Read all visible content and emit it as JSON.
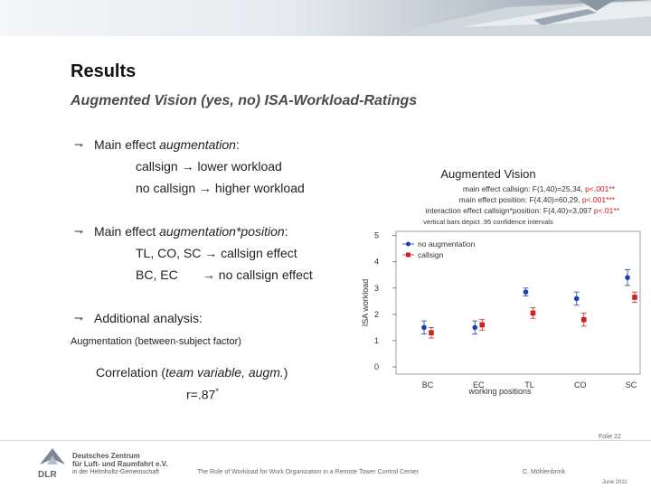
{
  "slide": {
    "title": "Results",
    "subtitle": "Augmented Vision (yes, no) ISA-Workload-Ratings"
  },
  "bullets": {
    "b1_prefix": "Main effect ",
    "b1_emph": "augmentation",
    "b1_suffix": ":",
    "b1_line2": "callsign → lower workload",
    "b1_line3": "no callsign  → higher workload",
    "b2_prefix": "Main effect ",
    "b2_emph": "augmentation*position",
    "b2_suffix": ":",
    "b2_line2": "TL, CO, SC → callsign effect",
    "b2_line3": "BC, EC       → no callsign effect",
    "b3": "Additional analysis:",
    "b3_sub": "Augmentation (between-subject factor)",
    "corr_prefix": "Correlation (",
    "corr_emph": "team variable, augm.",
    "corr_suffix": ")",
    "corr_value": "r=.87",
    "corr_sup": "*"
  },
  "chart_data": {
    "type": "scatter",
    "title": "Augmented Vision",
    "stats": [
      {
        "label": "main effect callsign: F(1,40)=25,34, ",
        "p": "p<.001**"
      },
      {
        "label": "main effect position: F(4,40)=60,29, ",
        "p": "p<.001***"
      },
      {
        "label": "interaction effect callsign*position: F(4,40)=3,097 ",
        "p": "p<.01**"
      }
    ],
    "note": "vertical bars depict .95 confidence intervals",
    "ylabel": "ISA workload",
    "xlabel": "working positions",
    "categories": [
      "BC",
      "EC",
      "TL",
      "CO",
      "SC"
    ],
    "ylim": [
      0,
      5
    ],
    "yticks": [
      0,
      1,
      2,
      3,
      4,
      5
    ],
    "series": [
      {
        "name": "no augmentation",
        "color": "#1a3fb0",
        "marker": "circle",
        "values": [
          1.5,
          1.5,
          2.85,
          2.6,
          3.4
        ],
        "err": [
          0.25,
          0.25,
          0.15,
          0.25,
          0.3
        ]
      },
      {
        "name": "callsign",
        "color": "#cc2222",
        "marker": "square",
        "values": [
          1.3,
          1.6,
          2.05,
          1.8,
          2.65
        ],
        "err": [
          0.2,
          0.2,
          0.2,
          0.25,
          0.2
        ]
      }
    ],
    "colors": {
      "p_value": "#d11a1a"
    }
  },
  "footer": {
    "org_line1": "Deutsches Zentrum",
    "org_line2": "für Luft- und Raumfahrt e.V.",
    "org_line3": "in der Helmholtz-Gemeinschaft",
    "logo_text": "DLR",
    "center": "The Role of Workload for Work Organization in a Remote Tower Control Center",
    "author": "C. Möhlenbrink",
    "folie": "Folie 22",
    "date": "June 2011"
  }
}
